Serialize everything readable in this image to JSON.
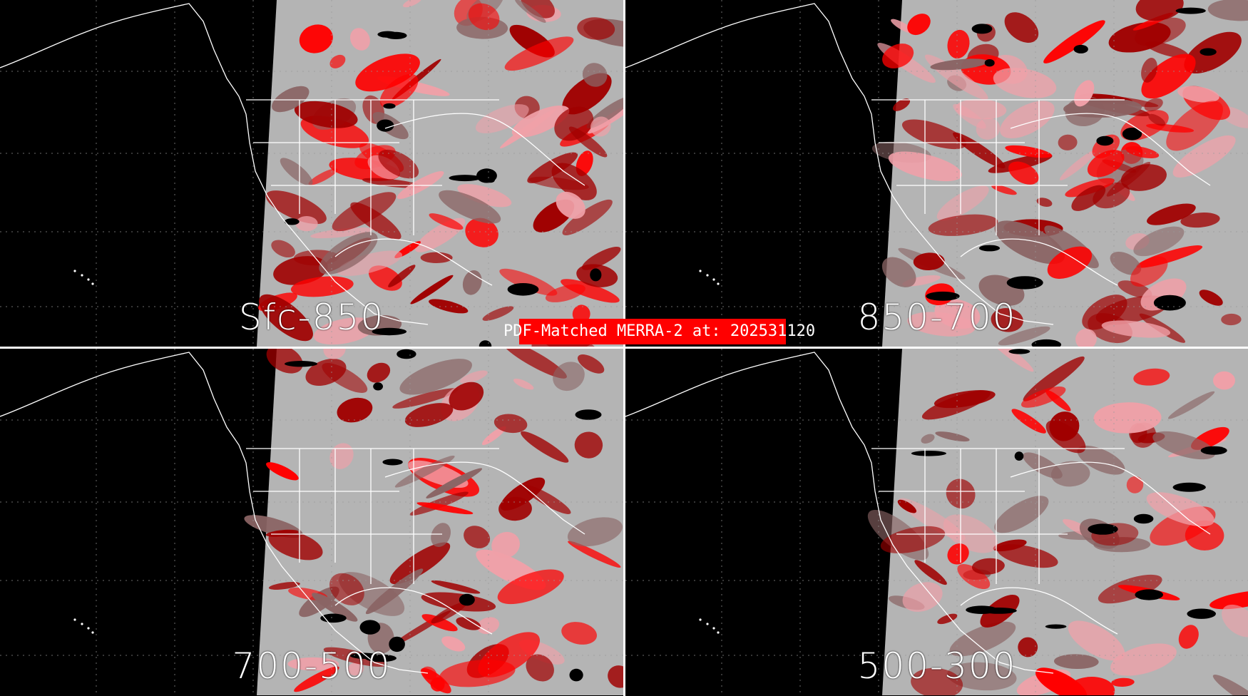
{
  "title": "PDF-Matched MERRA-2 at: 202531120",
  "colors": {
    "background": "#000000",
    "nodata_swath": "#b4b4b4",
    "low": "#8a6464",
    "mid": "#a00000",
    "high": "#f0a0a8",
    "peak": "#ff0000",
    "coast": "#ffffff",
    "banner": "#ff0000"
  },
  "panels": [
    {
      "label": "Sfc-850"
    },
    {
      "label": "850-700"
    },
    {
      "label": "700-500"
    },
    {
      "label": "500-300"
    }
  ]
}
